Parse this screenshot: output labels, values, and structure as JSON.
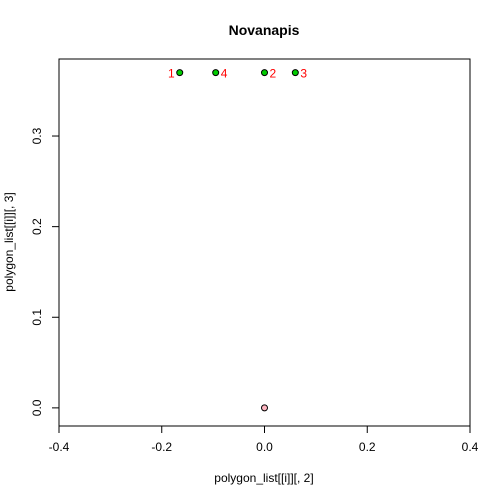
{
  "chart_data": {
    "type": "scatter",
    "title": "Novanapis",
    "xlabel": "polygon_list[[i]][, 2]",
    "ylabel": "polygon_list[[i]][, 3]",
    "xlim": [
      -0.4,
      0.4
    ],
    "ylim": [
      -0.02,
      0.385
    ],
    "x_ticks": [
      -0.4,
      -0.2,
      0.0,
      0.2,
      0.4
    ],
    "x_tick_labels": [
      "-0.4",
      "-0.2",
      "0.0",
      "0.2",
      "0.4"
    ],
    "y_ticks": [
      0.0,
      0.1,
      0.2,
      0.3
    ],
    "y_tick_labels": [
      "0.0",
      "0.1",
      "0.2",
      "0.3"
    ],
    "grid": false,
    "series": [
      {
        "color": "#00cc00",
        "points": [
          {
            "x": -0.165,
            "y": 0.37,
            "label": "1",
            "label_side": "left"
          },
          {
            "x": 0.0,
            "y": 0.37,
            "label": "2",
            "label_side": "right"
          },
          {
            "x": 0.06,
            "y": 0.37,
            "label": "3",
            "label_side": "right"
          },
          {
            "x": -0.095,
            "y": 0.37,
            "label": "4",
            "label_side": "right"
          }
        ]
      },
      {
        "color": "#ffb6c1",
        "points": [
          {
            "x": 0.0,
            "y": 0.0,
            "label": "",
            "label_side": "none"
          }
        ]
      }
    ]
  }
}
